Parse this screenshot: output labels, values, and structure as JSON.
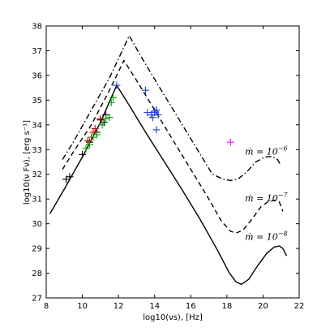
{
  "chart_data": {
    "type": "line",
    "title": "",
    "xlabel": "log10(νs), [Hz]",
    "ylabel": "log10(ν Fν), [erg s⁻¹]",
    "xlim": [
      8,
      22
    ],
    "ylim": [
      27,
      38
    ],
    "xticks": [
      8,
      10,
      12,
      14,
      16,
      18,
      20,
      22
    ],
    "yticks": [
      27,
      28,
      29,
      30,
      31,
      32,
      33,
      34,
      35,
      36,
      37,
      38
    ],
    "grid": false,
    "series": [
      {
        "style": "solid",
        "color": "#000000",
        "points": [
          [
            8.2,
            30.4
          ],
          [
            9,
            31.4
          ],
          [
            10,
            32.7
          ],
          [
            11,
            34.1
          ],
          [
            11.9,
            35.6
          ],
          [
            12.5,
            34.9
          ],
          [
            13.5,
            33.7
          ],
          [
            14.5,
            32.55
          ],
          [
            15.5,
            31.4
          ],
          [
            16.5,
            30.2
          ],
          [
            17.5,
            28.9
          ],
          [
            18.1,
            28.05
          ],
          [
            18.5,
            27.65
          ],
          [
            18.8,
            27.55
          ],
          [
            19.2,
            27.75
          ],
          [
            19.7,
            28.3
          ],
          [
            20.2,
            28.8
          ],
          [
            20.6,
            29.05
          ],
          [
            20.9,
            29.1
          ],
          [
            21.1,
            29.0
          ],
          [
            21.3,
            28.7
          ]
        ]
      },
      {
        "style": "dashed",
        "color": "#000000",
        "points": [
          [
            8.9,
            32.2
          ],
          [
            9.5,
            32.9
          ],
          [
            10.5,
            34.0
          ],
          [
            11.5,
            35.4
          ],
          [
            12.3,
            36.6
          ],
          [
            13,
            35.8
          ],
          [
            14,
            34.6
          ],
          [
            15,
            33.4
          ],
          [
            16,
            32.2
          ],
          [
            17,
            31.0
          ],
          [
            17.7,
            30.1
          ],
          [
            18.2,
            29.7
          ],
          [
            18.5,
            29.62
          ],
          [
            18.9,
            29.75
          ],
          [
            19.4,
            30.2
          ],
          [
            19.9,
            30.7
          ],
          [
            20.3,
            30.9
          ],
          [
            20.7,
            30.95
          ],
          [
            20.9,
            30.88
          ],
          [
            21.1,
            30.5
          ]
        ]
      },
      {
        "style": "dashdot",
        "color": "#000000",
        "points": [
          [
            8.9,
            32.6
          ],
          [
            9.5,
            33.3
          ],
          [
            10.5,
            34.6
          ],
          [
            11.5,
            35.9
          ],
          [
            12.4,
            37.3
          ],
          [
            12.6,
            37.6
          ],
          [
            13.3,
            36.7
          ],
          [
            14.2,
            35.6
          ],
          [
            15.2,
            34.4
          ],
          [
            16.2,
            33.2
          ],
          [
            17.2,
            32.0
          ],
          [
            17.8,
            31.8
          ],
          [
            18.2,
            31.75
          ],
          [
            18.6,
            31.8
          ],
          [
            19.1,
            32.1
          ],
          [
            19.6,
            32.5
          ],
          [
            20.1,
            32.7
          ],
          [
            20.5,
            32.72
          ],
          [
            20.8,
            32.6
          ],
          [
            21.0,
            32.35
          ]
        ]
      }
    ],
    "markers": [
      {
        "color": "#000000",
        "points": [
          [
            9.1,
            31.8
          ],
          [
            9.3,
            31.9
          ],
          [
            10.0,
            32.8
          ],
          [
            10.4,
            33.3
          ],
          [
            10.8,
            33.7
          ],
          [
            11.0,
            34.2
          ],
          [
            11.2,
            34.1
          ],
          [
            11.3,
            34.4
          ]
        ]
      },
      {
        "color": "#cc0000",
        "points": [
          [
            10.3,
            33.35
          ],
          [
            10.5,
            33.5
          ],
          [
            10.6,
            33.7
          ],
          [
            10.7,
            33.85
          ],
          [
            11.0,
            34.25
          ]
        ]
      },
      {
        "color": "#00a000",
        "points": [
          [
            10.2,
            33.05
          ],
          [
            10.4,
            33.2
          ],
          [
            10.6,
            33.5
          ],
          [
            10.8,
            33.6
          ],
          [
            11.1,
            34.0
          ],
          [
            11.3,
            34.25
          ],
          [
            11.5,
            34.3
          ],
          [
            11.6,
            34.9
          ],
          [
            11.7,
            35.1
          ]
        ]
      },
      {
        "color": "#1f3fcc",
        "points": [
          [
            11.9,
            35.6
          ],
          [
            13.5,
            35.4
          ],
          [
            13.6,
            34.5
          ],
          [
            13.8,
            34.4
          ],
          [
            13.9,
            34.3
          ],
          [
            14.0,
            34.55
          ],
          [
            14.1,
            34.6
          ],
          [
            14.0,
            34.5
          ],
          [
            14.2,
            34.4
          ],
          [
            14.1,
            33.8
          ]
        ]
      },
      {
        "color": "#ff00ff",
        "points": [
          [
            18.2,
            33.3
          ]
        ]
      }
    ],
    "annotations": [
      {
        "base": "ṁ = 10",
        "exp": "−6",
        "x": 19.0,
        "y": 32.8
      },
      {
        "base": "ṁ = 10",
        "exp": "−7",
        "x": 19.0,
        "y": 30.9
      },
      {
        "base": "ṁ = 10",
        "exp": "−8",
        "x": 19.0,
        "y": 29.35
      }
    ]
  }
}
